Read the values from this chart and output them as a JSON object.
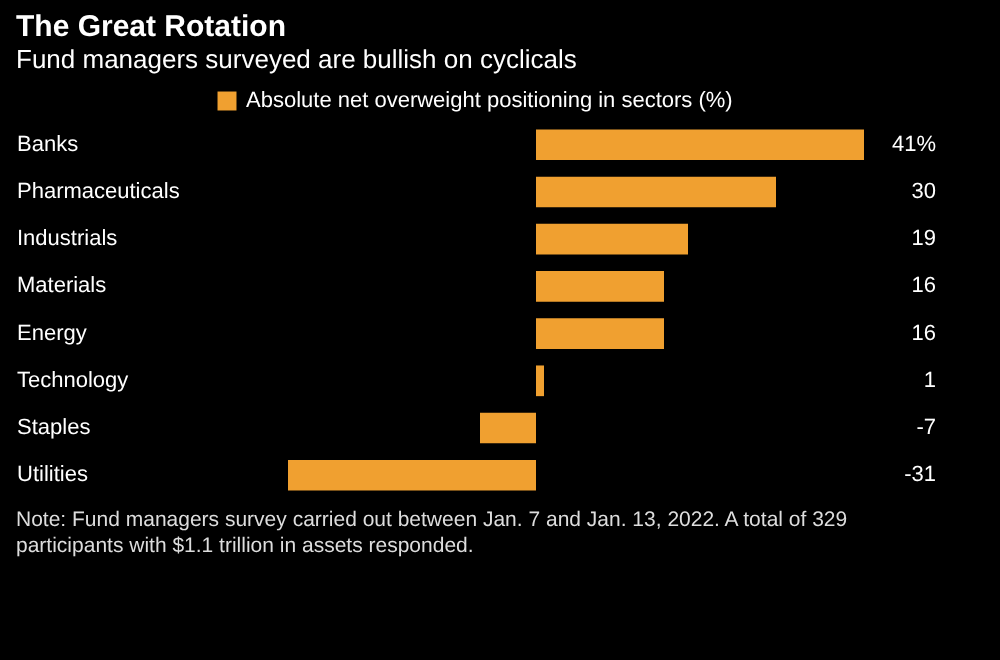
{
  "chart_data": {
    "type": "bar",
    "orientation": "horizontal",
    "title": "The Great Rotation",
    "subtitle": "Fund managers surveyed are bullish on cyclicals",
    "categories": [
      "Banks",
      "Pharmaceuticals",
      "Industrials",
      "Materials",
      "Energy",
      "Technology",
      "Staples",
      "Utilities"
    ],
    "series": [
      {
        "name": "Absolute net overweight positioning in sectors (%)",
        "color": "#f0a030",
        "values": [
          41,
          30,
          19,
          16,
          16,
          1,
          -7,
          -31
        ],
        "value_labels": [
          "41%",
          "30",
          "19",
          "16",
          "16",
          "1",
          "-7",
          "-31"
        ]
      }
    ],
    "legend": "top left",
    "annotations": [
      "Note: Fund managers survey carried out between Jan. 7 and Jan. 13, 2022. A total of 329 participants with $1.1 trillion in assets responded."
    ]
  }
}
